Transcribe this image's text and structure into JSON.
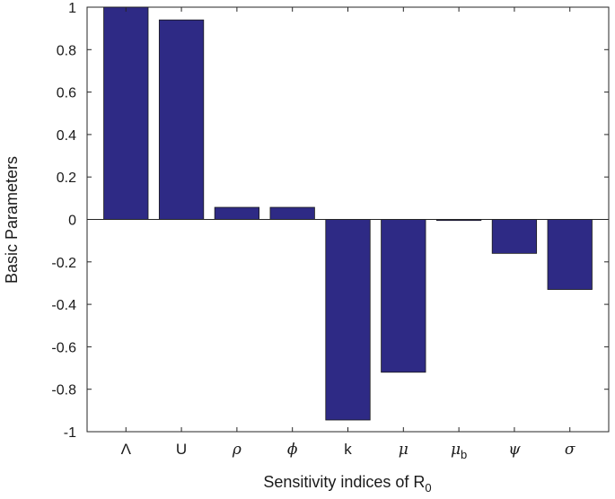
{
  "chart_data": {
    "type": "bar",
    "xlabel": "Sensitivity indices of R",
    "xlabel_sub": "0",
    "ylabel": "Basic Parameters",
    "ylim": [
      -1,
      1
    ],
    "yticks": [
      "1",
      "0.8",
      "0.6",
      "0.4",
      "0.2",
      "0",
      "-0.2",
      "-0.4",
      "-0.6",
      "-0.8",
      "-1"
    ],
    "ytick_values": [
      1,
      0.8,
      0.6,
      0.4,
      0.2,
      0,
      -0.2,
      -0.4,
      -0.6,
      -0.8,
      -1
    ],
    "categories": [
      {
        "label": "Λ",
        "sub": "",
        "italic": false
      },
      {
        "label": "U",
        "sub": "",
        "italic": false
      },
      {
        "label": "ρ",
        "sub": "",
        "italic": true
      },
      {
        "label": "ϕ",
        "sub": "",
        "italic": true
      },
      {
        "label": "k",
        "sub": "",
        "italic": false
      },
      {
        "label": "μ",
        "sub": "",
        "italic": true
      },
      {
        "label": "μ",
        "sub": "b",
        "italic": true
      },
      {
        "label": "ψ",
        "sub": "",
        "italic": true
      },
      {
        "label": "σ",
        "sub": "",
        "italic": true
      }
    ],
    "values": [
      1.0,
      0.94,
      0.057,
      0.057,
      -0.945,
      -0.72,
      -0.005,
      -0.16,
      -0.33
    ],
    "bar_color": "#2e2a85",
    "grid": false,
    "box": true
  }
}
